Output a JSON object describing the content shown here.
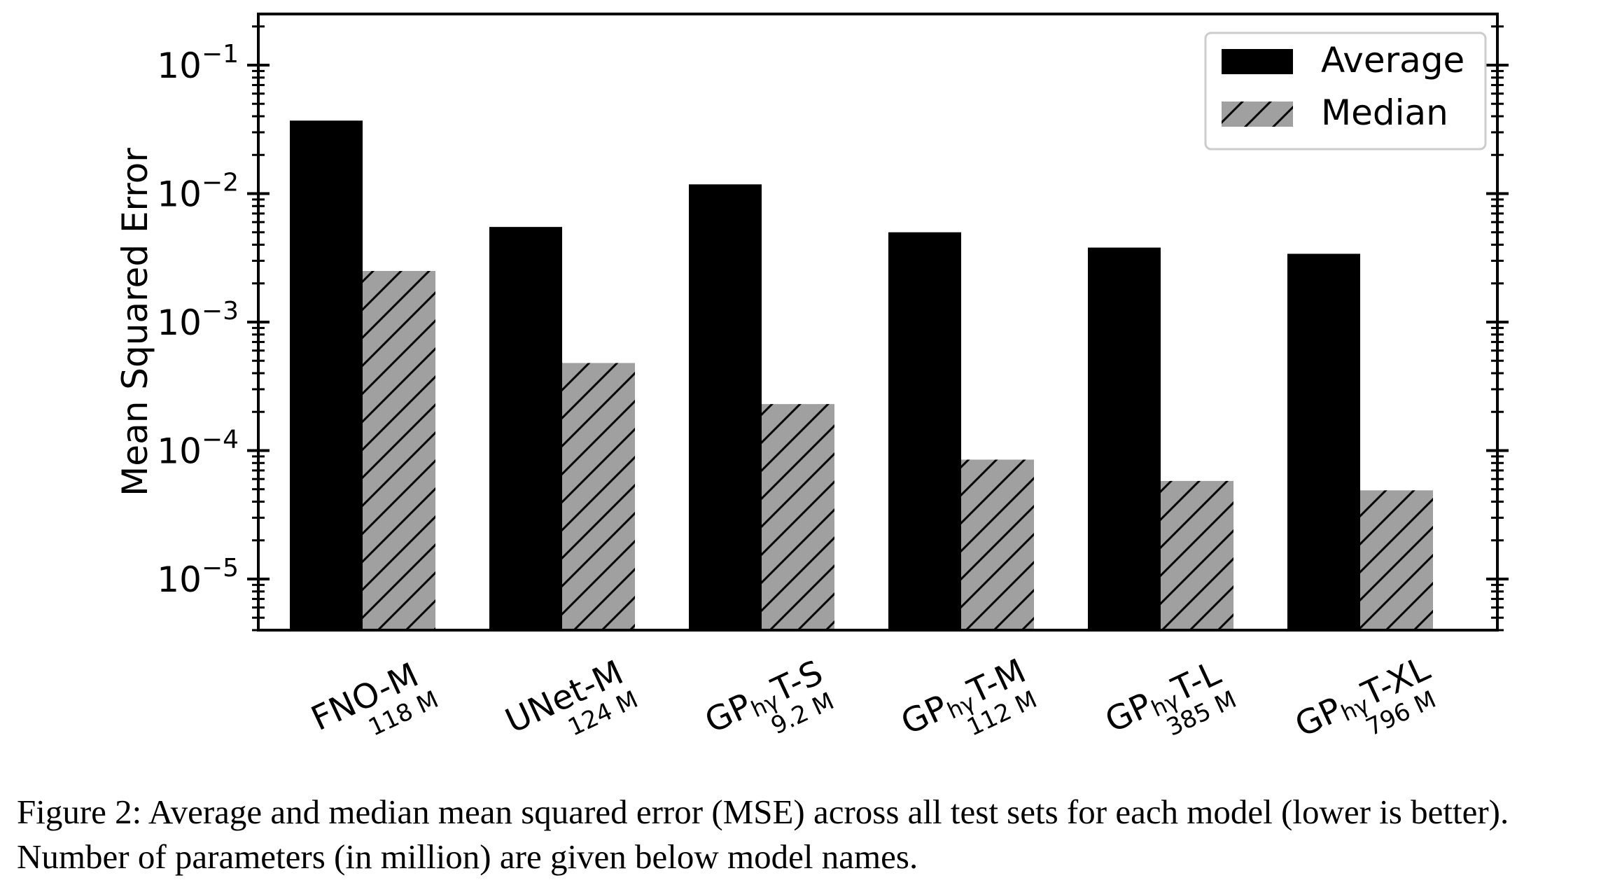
{
  "chart_data": {
    "type": "bar",
    "ylabel": "Mean Squared Error",
    "yscale": "log",
    "ylim": [
      4e-06,
      0.25
    ],
    "yticks": [
      {
        "base": "10",
        "exp": "−5",
        "value": 1e-05
      },
      {
        "base": "10",
        "exp": "−4",
        "value": 0.0001
      },
      {
        "base": "10",
        "exp": "−3",
        "value": 0.001
      },
      {
        "base": "10",
        "exp": "−2",
        "value": 0.01
      },
      {
        "base": "10",
        "exp": "−1",
        "value": 0.1
      }
    ],
    "categories": [
      {
        "prefix": "FNO-M",
        "sub": "",
        "suffix": "",
        "params": "118 M"
      },
      {
        "prefix": "UNet-M",
        "sub": "",
        "suffix": "",
        "params": "124 M"
      },
      {
        "prefix": "GP",
        "sub": "hγ",
        "suffix": "T-S",
        "params": "9.2 M"
      },
      {
        "prefix": "GP",
        "sub": "hγ",
        "suffix": "T-M",
        "params": "112 M"
      },
      {
        "prefix": "GP",
        "sub": "hγ",
        "suffix": "T-L",
        "params": "385 M"
      },
      {
        "prefix": "GP",
        "sub": "hγ",
        "suffix": "T-XL",
        "params": "796 M"
      }
    ],
    "series": [
      {
        "name": "Average",
        "color": "#000000",
        "pattern": "solid",
        "values": [
          0.037,
          0.0055,
          0.0118,
          0.005,
          0.0038,
          0.0034
        ]
      },
      {
        "name": "Median",
        "color": "#a0a0a0",
        "pattern": "hatch",
        "values": [
          0.0025,
          0.00048,
          0.00023,
          8.5e-05,
          5.8e-05,
          4.9e-05
        ]
      }
    ],
    "legend_position": "top-right",
    "grid": false
  },
  "caption": "Figure 2: Average and median mean squared error (MSE) across all test sets for each model (lower is better). Number of parameters (in million) are given below model names."
}
